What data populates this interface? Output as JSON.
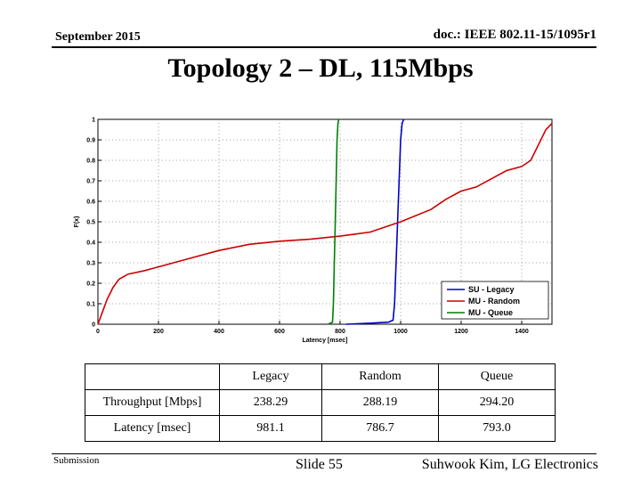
{
  "header": {
    "date": "September 2015",
    "doc_id": "doc.: IEEE 802.11-15/1095r1"
  },
  "slide_title": "Topology 2 – DL, 115Mbps",
  "chart_data": {
    "type": "line",
    "title": "",
    "xlabel": "Latency [msec]",
    "ylabel": "F(x)",
    "xlim": [
      0,
      1500
    ],
    "ylim": [
      0,
      1
    ],
    "x_ticks": [
      0,
      200,
      400,
      600,
      800,
      1000,
      1200,
      1400
    ],
    "y_ticks": [
      0,
      0.1,
      0.2,
      0.3,
      0.4,
      0.5,
      0.6,
      0.7,
      0.8,
      0.9,
      1
    ],
    "grid": true,
    "legend_position": "bottom-right",
    "series": [
      {
        "name": "SU - Legacy",
        "color": "#0000cc",
        "points": [
          [
            820,
            0
          ],
          [
            900,
            0.005
          ],
          [
            960,
            0.01
          ],
          [
            975,
            0.02
          ],
          [
            980,
            0.1
          ],
          [
            985,
            0.3
          ],
          [
            990,
            0.5
          ],
          [
            995,
            0.7
          ],
          [
            1000,
            0.9
          ],
          [
            1005,
            0.98
          ],
          [
            1010,
            1.0
          ]
        ]
      },
      {
        "name": "MU - Random",
        "color": "#cc0000",
        "points": [
          [
            0,
            0
          ],
          [
            5,
            0.02
          ],
          [
            15,
            0.06
          ],
          [
            30,
            0.12
          ],
          [
            50,
            0.18
          ],
          [
            70,
            0.22
          ],
          [
            100,
            0.245
          ],
          [
            150,
            0.26
          ],
          [
            200,
            0.28
          ],
          [
            300,
            0.32
          ],
          [
            400,
            0.36
          ],
          [
            500,
            0.39
          ],
          [
            600,
            0.405
          ],
          [
            700,
            0.415
          ],
          [
            800,
            0.43
          ],
          [
            850,
            0.44
          ],
          [
            900,
            0.45
          ],
          [
            940,
            0.47
          ],
          [
            980,
            0.49
          ],
          [
            1000,
            0.5
          ],
          [
            1100,
            0.56
          ],
          [
            1150,
            0.61
          ],
          [
            1200,
            0.65
          ],
          [
            1250,
            0.67
          ],
          [
            1300,
            0.71
          ],
          [
            1350,
            0.75
          ],
          [
            1400,
            0.77
          ],
          [
            1430,
            0.8
          ],
          [
            1460,
            0.89
          ],
          [
            1480,
            0.95
          ],
          [
            1500,
            0.98
          ]
        ]
      },
      {
        "name": "MU - Queue",
        "color": "#008000",
        "points": [
          [
            760,
            0
          ],
          [
            775,
            0.01
          ],
          [
            778,
            0.1
          ],
          [
            781,
            0.3
          ],
          [
            784,
            0.5
          ],
          [
            787,
            0.7
          ],
          [
            790,
            0.9
          ],
          [
            793,
            0.98
          ],
          [
            796,
            1.0
          ]
        ]
      }
    ]
  },
  "table": {
    "headers": [
      "",
      "Legacy",
      "Random",
      "Queue"
    ],
    "rows": [
      [
        "Throughput [Mbps]",
        "238.29",
        "288.19",
        "294.20"
      ],
      [
        "Latency [msec]",
        "981.1",
        "786.7",
        "793.0"
      ]
    ]
  },
  "footer": {
    "left": "Submission",
    "center": "Slide 55",
    "right": "Suhwook Kim, LG Electronics"
  }
}
